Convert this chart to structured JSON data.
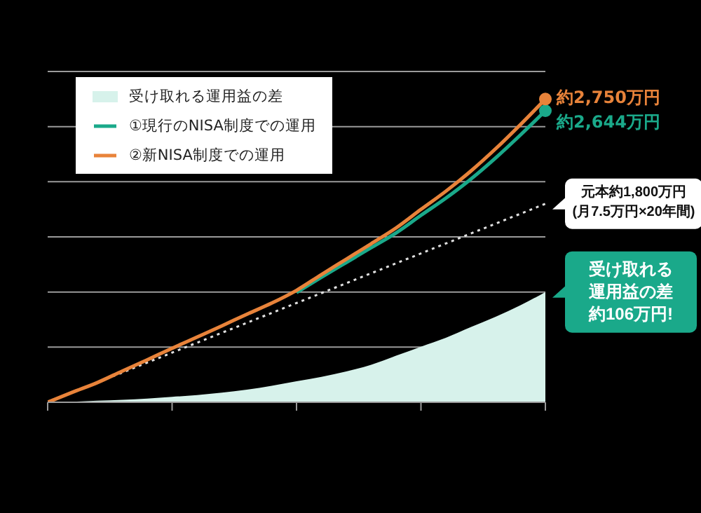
{
  "chart_data": {
    "type": "line",
    "grid": "y",
    "legend": "top left",
    "categories": [
      null,
      null,
      null,
      null,
      null,
      null,
      null,
      null,
      null,
      null,
      null,
      null,
      null,
      null,
      null,
      null,
      null,
      null,
      null,
      null,
      null
    ],
    "ylim": [
      0,
      3000
    ],
    "yticks": [
      {
        "value": 0,
        "label": null
      },
      {
        "value": 500,
        "label": null
      },
      {
        "value": 1000,
        "label": null
      },
      {
        "value": 1500,
        "label": null
      },
      {
        "value": 2000,
        "label": null
      },
      {
        "value": 2500,
        "label": null
      },
      {
        "value": 3000,
        "label": null
      }
    ],
    "annotations": [
      "受け取れる運用益の差約106万円!",
      "元本約1,800万円\n(月7.5万円×20年間)"
    ],
    "series": [
      {
        "name": "受け取れる運用益の差",
        "type": "area",
        "color": "#d7f2eb",
        "values": [
          0,
          5,
          14,
          22,
          33,
          49,
          65,
          87,
          114,
          150,
          191,
          231,
          280,
          340,
          422,
          504,
          585,
          681,
          776,
          880,
          1000
        ]
      },
      {
        "name": "①現行のNISA制度での運用",
        "color": "#1aa98a",
        "values": [
          null,
          null,
          null,
          null,
          null,
          null,
          null,
          null,
          null,
          null,
          995,
          1133,
          1268,
          1402,
          1536,
          1695,
          1851,
          2023,
          2216,
          2425,
          2644
        ],
        "value_labels": [
          null,
          null,
          null,
          null,
          null,
          null,
          null,
          null,
          null,
          null,
          null,
          null,
          null,
          null,
          null,
          null,
          null,
          null,
          null,
          null,
          "約2,644万円"
        ]
      },
      {
        "name": "②新NISA制度での運用",
        "color": "#e8833a",
        "values": [
          0,
          91,
          179,
          283,
          385,
          490,
          591,
          693,
          798,
          899,
          1015,
          1158,
          1298,
          1438,
          1581,
          1749,
          1914,
          2096,
          2299,
          2519,
          2750
        ],
        "value_labels": [
          null,
          null,
          null,
          null,
          null,
          null,
          null,
          null,
          null,
          null,
          null,
          null,
          null,
          null,
          null,
          null,
          null,
          null,
          null,
          null,
          "約2,750万円"
        ]
      },
      {
        "line_style": "dotted",
        "color": "#e0e0e0",
        "values": [
          0,
          90,
          180,
          270,
          360,
          450,
          540,
          630,
          720,
          810,
          900,
          990,
          1080,
          1170,
          1260,
          1350,
          1440,
          1530,
          1620,
          1710,
          1800
        ]
      }
    ]
  }
}
